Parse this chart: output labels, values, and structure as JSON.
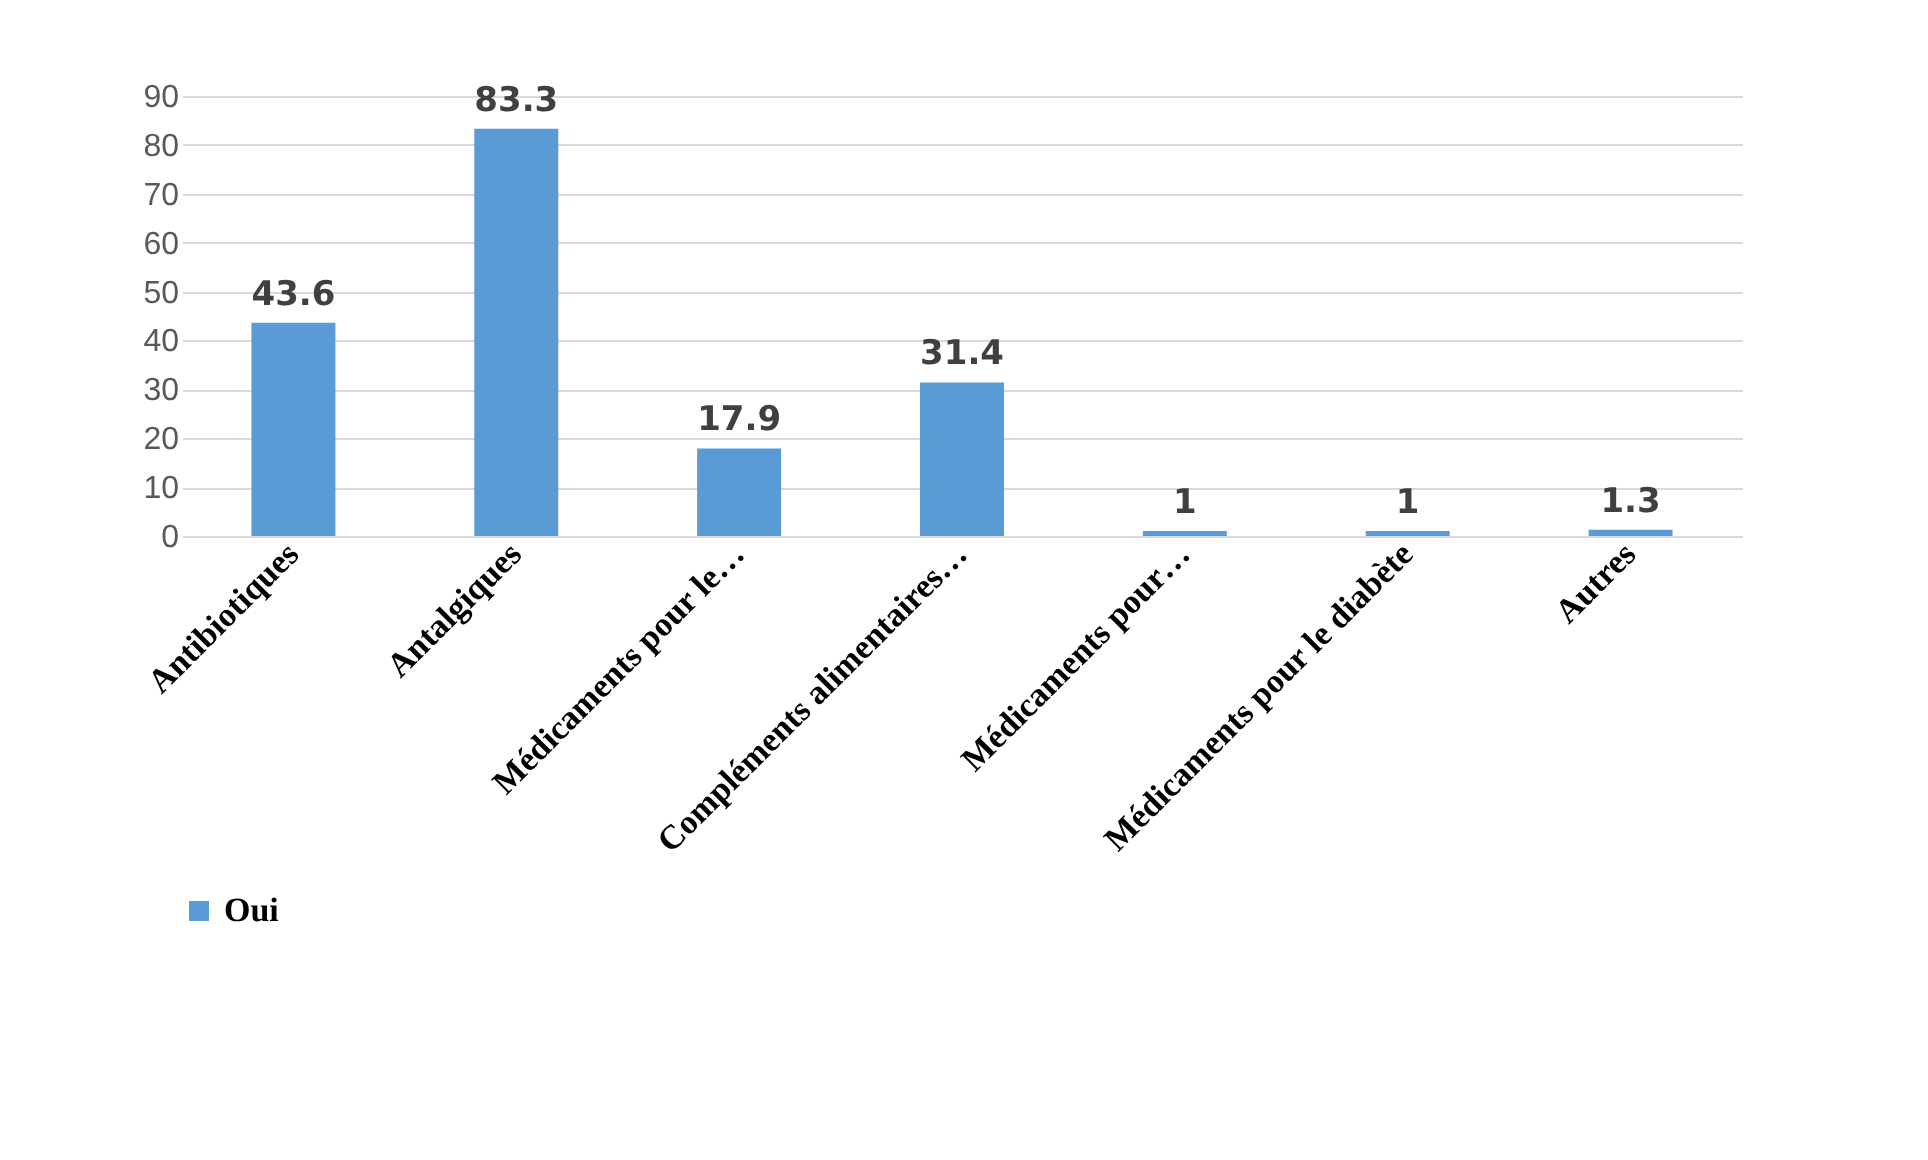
{
  "chart_data": {
    "type": "bar",
    "categories": [
      "Antibiotiques",
      "Antalgiques",
      "Médicaments pour le…",
      "Compléments alimentaires…",
      "Médicaments pour…",
      "Médicaments pour le diabète",
      "Autres"
    ],
    "series": [
      {
        "name": "Oui",
        "color": "#5b9bd5",
        "values": [
          43.6,
          83.3,
          17.9,
          31.4,
          1,
          1,
          1.3
        ]
      }
    ],
    "ylim": [
      0,
      90
    ],
    "yticks": [
      0,
      10,
      20,
      30,
      40,
      50,
      60,
      70,
      80,
      90
    ],
    "grid": "y",
    "legend": "bottom",
    "data_labels": true
  }
}
